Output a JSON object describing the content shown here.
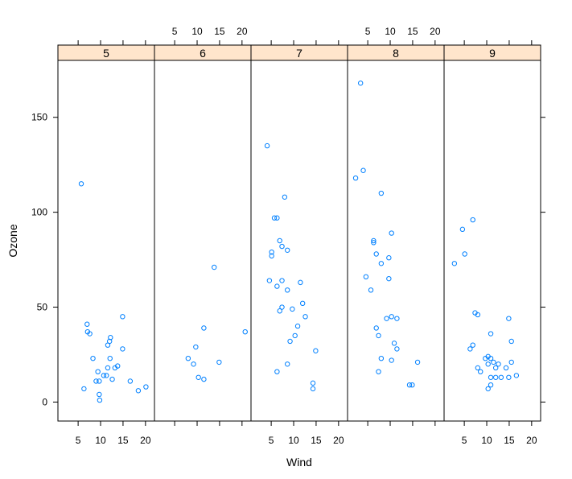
{
  "chart_data": {
    "type": "scatter",
    "layout": "lattice-panels",
    "xlabel": "Wind",
    "ylabel": "Ozone",
    "xlim": [
      0.5,
      22
    ],
    "ylim": [
      -10,
      180
    ],
    "x_ticks": [
      5,
      10,
      15,
      20
    ],
    "y_ticks": [
      0,
      50,
      100,
      150
    ],
    "point_color": "#0080ff",
    "strip_color": "#ffe5cc",
    "panels": [
      {
        "label": "5",
        "points": [
          {
            "x": 5.7,
            "y": 115
          },
          {
            "x": 6.3,
            "y": 7
          },
          {
            "x": 7.0,
            "y": 41
          },
          {
            "x": 7.1,
            "y": 37
          },
          {
            "x": 7.6,
            "y": 36
          },
          {
            "x": 8.3,
            "y": 23
          },
          {
            "x": 9.0,
            "y": 11
          },
          {
            "x": 9.4,
            "y": 16
          },
          {
            "x": 9.7,
            "y": 11
          },
          {
            "x": 9.7,
            "y": 4
          },
          {
            "x": 9.8,
            "y": 1
          },
          {
            "x": 10.7,
            "y": 14
          },
          {
            "x": 11.3,
            "y": 14
          },
          {
            "x": 11.6,
            "y": 18
          },
          {
            "x": 11.6,
            "y": 30
          },
          {
            "x": 12.0,
            "y": 32
          },
          {
            "x": 12.2,
            "y": 34
          },
          {
            "x": 12.1,
            "y": 23
          },
          {
            "x": 12.6,
            "y": 12
          },
          {
            "x": 13.2,
            "y": 18
          },
          {
            "x": 13.8,
            "y": 19
          },
          {
            "x": 14.9,
            "y": 28
          },
          {
            "x": 14.9,
            "y": 45
          },
          {
            "x": 16.6,
            "y": 11
          },
          {
            "x": 18.4,
            "y": 6
          },
          {
            "x": 20.1,
            "y": 8
          }
        ]
      },
      {
        "label": "6",
        "points": [
          {
            "x": 8.0,
            "y": 23
          },
          {
            "x": 9.2,
            "y": 20
          },
          {
            "x": 9.7,
            "y": 29
          },
          {
            "x": 10.3,
            "y": 13
          },
          {
            "x": 11.5,
            "y": 12
          },
          {
            "x": 11.5,
            "y": 39
          },
          {
            "x": 13.8,
            "y": 71
          },
          {
            "x": 14.9,
            "y": 21
          },
          {
            "x": 20.7,
            "y": 37
          }
        ]
      },
      {
        "label": "7",
        "points": [
          {
            "x": 4.1,
            "y": 135
          },
          {
            "x": 4.6,
            "y": 64
          },
          {
            "x": 5.1,
            "y": 79
          },
          {
            "x": 5.1,
            "y": 77
          },
          {
            "x": 5.7,
            "y": 97
          },
          {
            "x": 6.3,
            "y": 97
          },
          {
            "x": 6.3,
            "y": 61
          },
          {
            "x": 6.3,
            "y": 16
          },
          {
            "x": 6.9,
            "y": 48
          },
          {
            "x": 6.9,
            "y": 85
          },
          {
            "x": 7.4,
            "y": 82
          },
          {
            "x": 7.4,
            "y": 64
          },
          {
            "x": 7.4,
            "y": 50
          },
          {
            "x": 8.0,
            "y": 108
          },
          {
            "x": 8.6,
            "y": 59
          },
          {
            "x": 8.6,
            "y": 20
          },
          {
            "x": 8.6,
            "y": 80
          },
          {
            "x": 9.2,
            "y": 32
          },
          {
            "x": 9.7,
            "y": 49
          },
          {
            "x": 10.3,
            "y": 35
          },
          {
            "x": 10.9,
            "y": 40
          },
          {
            "x": 11.5,
            "y": 63
          },
          {
            "x": 12.0,
            "y": 52
          },
          {
            "x": 12.6,
            "y": 45
          },
          {
            "x": 14.3,
            "y": 10
          },
          {
            "x": 14.3,
            "y": 7
          },
          {
            "x": 14.9,
            "y": 27
          }
        ]
      },
      {
        "label": "8",
        "points": [
          {
            "x": 2.3,
            "y": 118
          },
          {
            "x": 3.4,
            "y": 168
          },
          {
            "x": 4.0,
            "y": 122
          },
          {
            "x": 4.6,
            "y": 66
          },
          {
            "x": 5.7,
            "y": 59
          },
          {
            "x": 6.3,
            "y": 85
          },
          {
            "x": 6.3,
            "y": 84
          },
          {
            "x": 6.9,
            "y": 78
          },
          {
            "x": 6.9,
            "y": 39
          },
          {
            "x": 7.4,
            "y": 35
          },
          {
            "x": 7.4,
            "y": 16
          },
          {
            "x": 8.0,
            "y": 73
          },
          {
            "x": 8.0,
            "y": 110
          },
          {
            "x": 8.0,
            "y": 23
          },
          {
            "x": 9.2,
            "y": 44
          },
          {
            "x": 9.7,
            "y": 65
          },
          {
            "x": 9.7,
            "y": 76
          },
          {
            "x": 10.3,
            "y": 89
          },
          {
            "x": 10.3,
            "y": 45
          },
          {
            "x": 10.3,
            "y": 22
          },
          {
            "x": 10.9,
            "y": 31
          },
          {
            "x": 11.5,
            "y": 28
          },
          {
            "x": 11.5,
            "y": 44
          },
          {
            "x": 14.3,
            "y": 9
          },
          {
            "x": 14.9,
            "y": 9
          },
          {
            "x": 16.1,
            "y": 21
          }
        ]
      },
      {
        "label": "9",
        "points": [
          {
            "x": 2.8,
            "y": 73
          },
          {
            "x": 4.6,
            "y": 91
          },
          {
            "x": 5.1,
            "y": 78
          },
          {
            "x": 6.3,
            "y": 28
          },
          {
            "x": 6.9,
            "y": 96
          },
          {
            "x": 6.9,
            "y": 30
          },
          {
            "x": 7.4,
            "y": 47
          },
          {
            "x": 8.0,
            "y": 46
          },
          {
            "x": 8.0,
            "y": 18
          },
          {
            "x": 8.6,
            "y": 16
          },
          {
            "x": 9.7,
            "y": 23
          },
          {
            "x": 10.3,
            "y": 24
          },
          {
            "x": 10.3,
            "y": 20
          },
          {
            "x": 10.9,
            "y": 23
          },
          {
            "x": 10.9,
            "y": 36
          },
          {
            "x": 10.9,
            "y": 13
          },
          {
            "x": 11.5,
            "y": 21
          },
          {
            "x": 12.0,
            "y": 18
          },
          {
            "x": 12.0,
            "y": 13
          },
          {
            "x": 12.6,
            "y": 20
          },
          {
            "x": 13.2,
            "y": 13
          },
          {
            "x": 14.3,
            "y": 18
          },
          {
            "x": 14.9,
            "y": 13
          },
          {
            "x": 14.9,
            "y": 44
          },
          {
            "x": 15.5,
            "y": 21
          },
          {
            "x": 15.5,
            "y": 32
          },
          {
            "x": 16.6,
            "y": 14
          },
          {
            "x": 10.3,
            "y": 7
          },
          {
            "x": 10.9,
            "y": 9
          }
        ]
      }
    ]
  }
}
